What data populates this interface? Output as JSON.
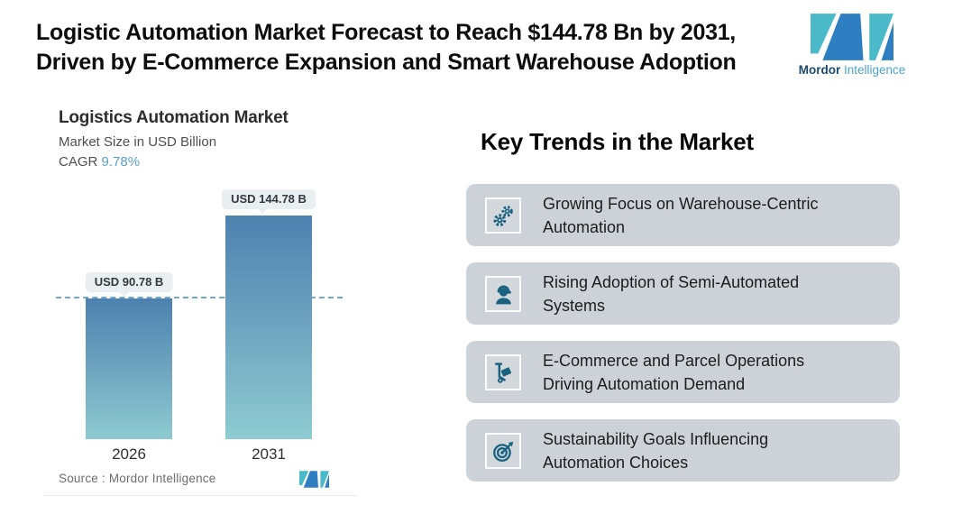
{
  "header": {
    "title_line1": "Logistic Automation Market Forecast to Reach $144.78 Bn by 2031,",
    "title_line2": "Driven by E-Commerce Expansion and Smart Warehouse Adoption",
    "brand": {
      "name_bold": "Mordor",
      "name_light": "Intelligence"
    }
  },
  "chart": {
    "title": "Logistics Automation Market",
    "subtitle": "Market Size in USD Billion",
    "cagr_label": "CAGR",
    "cagr_value": "9.78%",
    "source_text": "Source :  Mordor Intelligence",
    "bars": [
      {
        "year": "2026",
        "label": "USD 90.78 B"
      },
      {
        "year": "2031",
        "label": "USD 144.78 B"
      }
    ]
  },
  "chart_data": {
    "type": "bar",
    "title": "Logistics Automation Market",
    "subtitle": "Market Size in USD Billion",
    "cagr": "9.78%",
    "categories": [
      "2026",
      "2031"
    ],
    "values": [
      90.78,
      144.78
    ],
    "data_labels": [
      "USD 90.78 B",
      "USD 144.78 B"
    ],
    "ylabel": "Market Size in USD Billion",
    "ylim": [
      0,
      160
    ],
    "reference_line_value": 90.78,
    "grid": false,
    "legend": false,
    "bar_gradient": [
      "#4d82b0",
      "#8ecbd1"
    ]
  },
  "trends": {
    "heading": "Key Trends in the Market",
    "items": [
      {
        "icon": "gears-icon",
        "line1": "Growing Focus on Warehouse-Centric",
        "line2": "Automation"
      },
      {
        "icon": "headset-person-icon",
        "line1": "Rising Adoption of Semi-Automated",
        "line2": "Systems"
      },
      {
        "icon": "hand-truck-icon",
        "line1": "E-Commerce and Parcel Operations",
        "line2": "Driving Automation Demand"
      },
      {
        "icon": "target-arrow-icon",
        "line1": "Sustainability Goals Influencing",
        "line2": "Automation Choices"
      }
    ]
  },
  "colors": {
    "accent_teal": "#4ab9c9",
    "accent_blue": "#2e7fc2",
    "icon_color": "#19617f",
    "card_background": "#cdd2d8",
    "dashed_line": "#6fa6d6",
    "cagr_value_color": "#5b9ec9",
    "badge_background": "#e9eef1"
  }
}
